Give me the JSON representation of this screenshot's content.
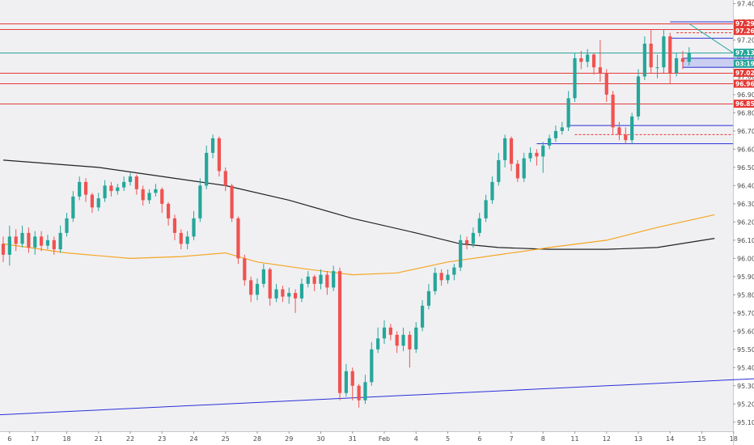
{
  "colors": {
    "background": "#f0f0f3",
    "bull": "#26a69a",
    "bear": "#ef5350",
    "ma_long": "#222222",
    "ma_short": "#f5a623",
    "trendline": "#2a2fd6",
    "level": "#e53935",
    "current": "#26a69a",
    "box": "#2a2fd6"
  },
  "chart_data": {
    "type": "candlestick",
    "ylim": [
      95.05,
      97.42
    ],
    "y_ticks": [
      "97.40",
      "97.30",
      "97.20",
      "97.10",
      "97.00",
      "96.90",
      "96.80",
      "96.70",
      "96.60",
      "96.50",
      "96.40",
      "96.30",
      "96.20",
      "96.10",
      "96.00",
      "95.90",
      "95.80",
      "95.70",
      "95.60",
      "95.50",
      "95.40",
      "95.30",
      "95.20",
      "95.10"
    ],
    "x_labels": [
      {
        "label": "6",
        "x": 1
      },
      {
        "label": "17",
        "x": 5
      },
      {
        "label": "18",
        "x": 10
      },
      {
        "label": "21",
        "x": 15
      },
      {
        "label": "22",
        "x": 20
      },
      {
        "label": "23",
        "x": 25
      },
      {
        "label": "24",
        "x": 30
      },
      {
        "label": "25",
        "x": 35
      },
      {
        "label": "28",
        "x": 40
      },
      {
        "label": "29",
        "x": 45
      },
      {
        "label": "30",
        "x": 50
      },
      {
        "label": "31",
        "x": 55
      },
      {
        "label": "Feb",
        "x": 60
      },
      {
        "label": "4",
        "x": 65
      },
      {
        "label": "5",
        "x": 70
      },
      {
        "label": "6",
        "x": 75
      },
      {
        "label": "7",
        "x": 80
      },
      {
        "label": "8",
        "x": 85
      },
      {
        "label": "11",
        "x": 90
      },
      {
        "label": "12",
        "x": 95
      },
      {
        "label": "13",
        "x": 100
      },
      {
        "label": "14",
        "x": 105
      },
      {
        "label": "15",
        "x": 110
      },
      {
        "label": "18",
        "x": 115
      }
    ],
    "candles": [
      [
        96.08,
        96.02,
        96.12,
        95.98
      ],
      [
        96.02,
        96.12,
        96.18,
        95.96
      ],
      [
        96.12,
        96.08,
        96.16,
        96.04
      ],
      [
        96.08,
        96.14,
        96.18,
        96.06
      ],
      [
        96.14,
        96.06,
        96.17,
        96.03
      ],
      [
        96.06,
        96.12,
        96.15,
        96.02
      ],
      [
        96.12,
        96.07,
        96.15,
        96.04
      ],
      [
        96.07,
        96.1,
        96.13,
        96.05
      ],
      [
        96.1,
        96.05,
        96.12,
        96.02
      ],
      [
        96.05,
        96.14,
        96.18,
        96.03
      ],
      [
        96.14,
        96.22,
        96.25,
        96.12
      ],
      [
        96.22,
        96.34,
        96.37,
        96.2
      ],
      [
        96.34,
        96.42,
        96.45,
        96.32
      ],
      [
        96.42,
        96.35,
        96.44,
        96.31
      ],
      [
        96.35,
        96.28,
        96.36,
        96.25
      ],
      [
        96.28,
        96.33,
        96.36,
        96.26
      ],
      [
        96.33,
        96.4,
        96.43,
        96.31
      ],
      [
        96.4,
        96.37,
        96.42,
        96.34
      ],
      [
        96.37,
        96.39,
        96.41,
        96.35
      ],
      [
        96.39,
        96.42,
        96.45,
        96.37
      ],
      [
        96.42,
        96.45,
        96.47,
        96.4
      ],
      [
        96.45,
        96.38,
        96.46,
        96.35
      ],
      [
        96.38,
        96.32,
        96.4,
        96.29
      ],
      [
        96.32,
        96.36,
        96.38,
        96.3
      ],
      [
        96.36,
        96.38,
        96.41,
        96.34
      ],
      [
        96.38,
        96.3,
        96.39,
        96.25
      ],
      [
        96.3,
        96.22,
        96.31,
        96.18
      ],
      [
        96.22,
        96.14,
        96.24,
        96.1
      ],
      [
        96.14,
        96.08,
        96.16,
        96.05
      ],
      [
        96.08,
        96.12,
        96.15,
        96.05
      ],
      [
        96.12,
        96.22,
        96.26,
        96.1
      ],
      [
        96.22,
        96.4,
        96.44,
        96.2
      ],
      [
        96.4,
        96.58,
        96.62,
        96.38
      ],
      [
        96.58,
        96.66,
        96.68,
        96.55
      ],
      [
        96.66,
        96.48,
        96.67,
        96.45
      ],
      [
        96.48,
        96.4,
        96.5,
        96.37
      ],
      [
        96.4,
        96.22,
        96.41,
        96.2
      ],
      [
        96.22,
        96.0,
        96.23,
        95.97
      ],
      [
        96.0,
        95.88,
        96.02,
        95.85
      ],
      [
        95.88,
        95.8,
        95.9,
        95.76
      ],
      [
        95.8,
        95.86,
        95.89,
        95.77
      ],
      [
        95.86,
        95.94,
        95.97,
        95.84
      ],
      [
        95.94,
        95.78,
        95.95,
        95.74
      ],
      [
        95.78,
        95.83,
        95.86,
        95.76
      ],
      [
        95.83,
        95.79,
        95.85,
        95.76
      ],
      [
        95.79,
        95.81,
        95.84,
        95.75
      ],
      [
        95.81,
        95.78,
        95.83,
        95.7
      ],
      [
        95.78,
        95.86,
        95.89,
        95.76
      ],
      [
        95.86,
        95.9,
        95.93,
        95.84
      ],
      [
        95.9,
        95.86,
        95.91,
        95.82
      ],
      [
        95.86,
        95.91,
        95.94,
        95.83
      ],
      [
        95.91,
        95.84,
        95.93,
        95.8
      ],
      [
        95.84,
        95.93,
        95.96,
        95.82
      ],
      [
        95.93,
        95.26,
        95.95,
        95.22
      ],
      [
        95.26,
        95.38,
        95.42,
        95.24
      ],
      [
        95.38,
        95.3,
        95.4,
        95.22
      ],
      [
        95.3,
        95.22,
        95.31,
        95.18
      ],
      [
        95.22,
        95.32,
        95.36,
        95.2
      ],
      [
        95.32,
        95.5,
        95.54,
        95.3
      ],
      [
        95.5,
        95.56,
        95.62,
        95.48
      ],
      [
        95.56,
        95.62,
        95.66,
        95.53
      ],
      [
        95.62,
        95.58,
        95.64,
        95.55
      ],
      [
        95.58,
        95.52,
        95.6,
        95.48
      ],
      [
        95.52,
        95.58,
        95.62,
        95.49
      ],
      [
        95.58,
        95.5,
        95.6,
        95.4
      ],
      [
        95.5,
        95.62,
        95.65,
        95.48
      ],
      [
        95.62,
        95.74,
        95.77,
        95.6
      ],
      [
        95.74,
        95.82,
        95.86,
        95.72
      ],
      [
        95.82,
        95.92,
        95.95,
        95.8
      ],
      [
        95.92,
        95.88,
        95.94,
        95.85
      ],
      [
        95.88,
        95.91,
        95.94,
        95.86
      ],
      [
        95.91,
        95.95,
        95.97,
        95.88
      ],
      [
        95.95,
        96.1,
        96.13,
        95.93
      ],
      [
        96.1,
        96.08,
        96.12,
        96.05
      ],
      [
        96.08,
        96.14,
        96.17,
        96.06
      ],
      [
        96.14,
        96.22,
        96.25,
        96.12
      ],
      [
        96.22,
        96.32,
        96.35,
        96.2
      ],
      [
        96.32,
        96.42,
        96.45,
        96.3
      ],
      [
        96.42,
        96.54,
        96.58,
        96.4
      ],
      [
        96.54,
        96.66,
        96.68,
        96.5
      ],
      [
        96.66,
        96.52,
        96.67,
        96.48
      ],
      [
        96.52,
        96.44,
        96.54,
        96.42
      ],
      [
        96.44,
        96.55,
        96.58,
        96.42
      ],
      [
        96.55,
        96.58,
        96.61,
        96.53
      ],
      [
        96.58,
        96.56,
        96.6,
        96.51
      ],
      [
        96.56,
        96.62,
        96.64,
        96.47
      ],
      [
        96.62,
        96.66,
        96.68,
        96.6
      ],
      [
        96.66,
        96.7,
        96.73,
        96.64
      ],
      [
        96.7,
        96.72,
        96.75,
        96.68
      ],
      [
        96.72,
        96.88,
        96.92,
        96.7
      ],
      [
        96.88,
        97.1,
        97.13,
        96.86
      ],
      [
        97.1,
        97.08,
        97.14,
        97.04
      ],
      [
        97.08,
        97.12,
        97.15,
        97.05
      ],
      [
        97.12,
        97.05,
        97.13,
        97.01
      ],
      [
        97.05,
        97.02,
        97.2,
        96.97
      ],
      [
        97.02,
        96.9,
        97.04,
        96.86
      ],
      [
        96.9,
        96.72,
        96.92,
        96.68
      ],
      [
        96.72,
        96.68,
        96.75,
        96.65
      ],
      [
        96.68,
        96.65,
        96.72,
        96.63
      ],
      [
        96.65,
        96.78,
        96.8,
        96.63
      ],
      [
        96.78,
        97.0,
        97.04,
        96.76
      ],
      [
        97.0,
        97.18,
        97.22,
        96.98
      ],
      [
        97.18,
        97.05,
        97.26,
        97.02
      ],
      [
        97.05,
        97.05,
        97.12,
        96.99
      ],
      [
        97.05,
        97.22,
        97.26,
        97.02
      ],
      [
        97.22,
        97.02,
        97.24,
        96.96
      ],
      [
        97.02,
        97.1,
        97.13,
        97.0
      ],
      [
        97.1,
        97.08,
        97.14,
        97.04
      ],
      [
        97.08,
        97.13,
        97.16,
        97.06
      ]
    ],
    "ma_long": [
      [
        0,
        96.54
      ],
      [
        15,
        96.5
      ],
      [
        25,
        96.45
      ],
      [
        35,
        96.4
      ],
      [
        45,
        96.32
      ],
      [
        55,
        96.22
      ],
      [
        65,
        96.14
      ],
      [
        72,
        96.08
      ],
      [
        78,
        96.06
      ],
      [
        86,
        96.05
      ],
      [
        95,
        96.05
      ],
      [
        103,
        96.06
      ],
      [
        112,
        96.11
      ]
    ],
    "ma_short": [
      [
        0,
        96.08
      ],
      [
        10,
        96.03
      ],
      [
        20,
        96.0
      ],
      [
        28,
        96.01
      ],
      [
        35,
        96.03
      ],
      [
        40,
        95.98
      ],
      [
        48,
        95.94
      ],
      [
        55,
        95.91
      ],
      [
        62,
        95.92
      ],
      [
        70,
        95.98
      ],
      [
        78,
        96.02
      ],
      [
        86,
        96.06
      ],
      [
        95,
        96.1
      ],
      [
        103,
        96.17
      ],
      [
        112,
        96.24
      ]
    ],
    "trendline": [
      [
        -1,
        95.14
      ],
      [
        119,
        95.34
      ]
    ],
    "hlines": [
      {
        "y": 97.29,
        "color": "#e53935",
        "style": "solid"
      },
      {
        "y": 97.26,
        "color": "#e53935",
        "style": "solid"
      },
      {
        "y": 97.13,
        "color": "#26a69a",
        "style": "solid"
      },
      {
        "y": 97.02,
        "color": "#e53935",
        "style": "solid"
      },
      {
        "y": 96.96,
        "color": "#e53935",
        "style": "solid"
      },
      {
        "y": 96.85,
        "color": "#e53935",
        "style": "solid"
      }
    ],
    "segments": [
      {
        "x1": 89,
        "x2": 119,
        "y1": 96.73,
        "y2": 96.73,
        "color": "#2a2fd6",
        "style": "solid"
      },
      {
        "x1": 90,
        "x2": 119,
        "y1": 96.68,
        "y2": 96.68,
        "color": "#e53935",
        "style": "dash"
      },
      {
        "x1": 84,
        "x2": 119,
        "y1": 96.63,
        "y2": 96.63,
        "color": "#2a2fd6",
        "style": "solid"
      },
      {
        "x1": 105,
        "x2": 119,
        "y1": 97.3,
        "y2": 97.3,
        "color": "#2a2fd6",
        "style": "solid"
      },
      {
        "x1": 106,
        "x2": 119,
        "y1": 97.24,
        "y2": 97.24,
        "color": "#e53935",
        "style": "dash"
      },
      {
        "x1": 105,
        "x2": 119,
        "y1": 97.21,
        "y2": 97.21,
        "color": "#2a2fd6",
        "style": "solid"
      },
      {
        "x1": 108,
        "x2": 118,
        "y1": 97.29,
        "y2": 97.13,
        "color": "#26a69a",
        "style": "solid"
      }
    ],
    "zone": {
      "x1": 107,
      "x2": 119,
      "y_top": 97.1,
      "y_bottom": 97.05
    },
    "badges": [
      {
        "y": 97.29,
        "label": "97.29",
        "color": "#e53935"
      },
      {
        "y": 97.25,
        "label": "97.26",
        "color": "#e53935"
      },
      {
        "y": 97.13,
        "label": "97.13",
        "color": "#26a69a"
      },
      {
        "y": 97.07,
        "label": "03:19:17",
        "color": "#26a69a"
      },
      {
        "y": 97.02,
        "label": "97.02",
        "color": "#e53935"
      },
      {
        "y": 96.96,
        "label": "96.96",
        "color": "#e53935"
      },
      {
        "y": 96.85,
        "label": "96.85",
        "color": "#e53935"
      }
    ]
  }
}
